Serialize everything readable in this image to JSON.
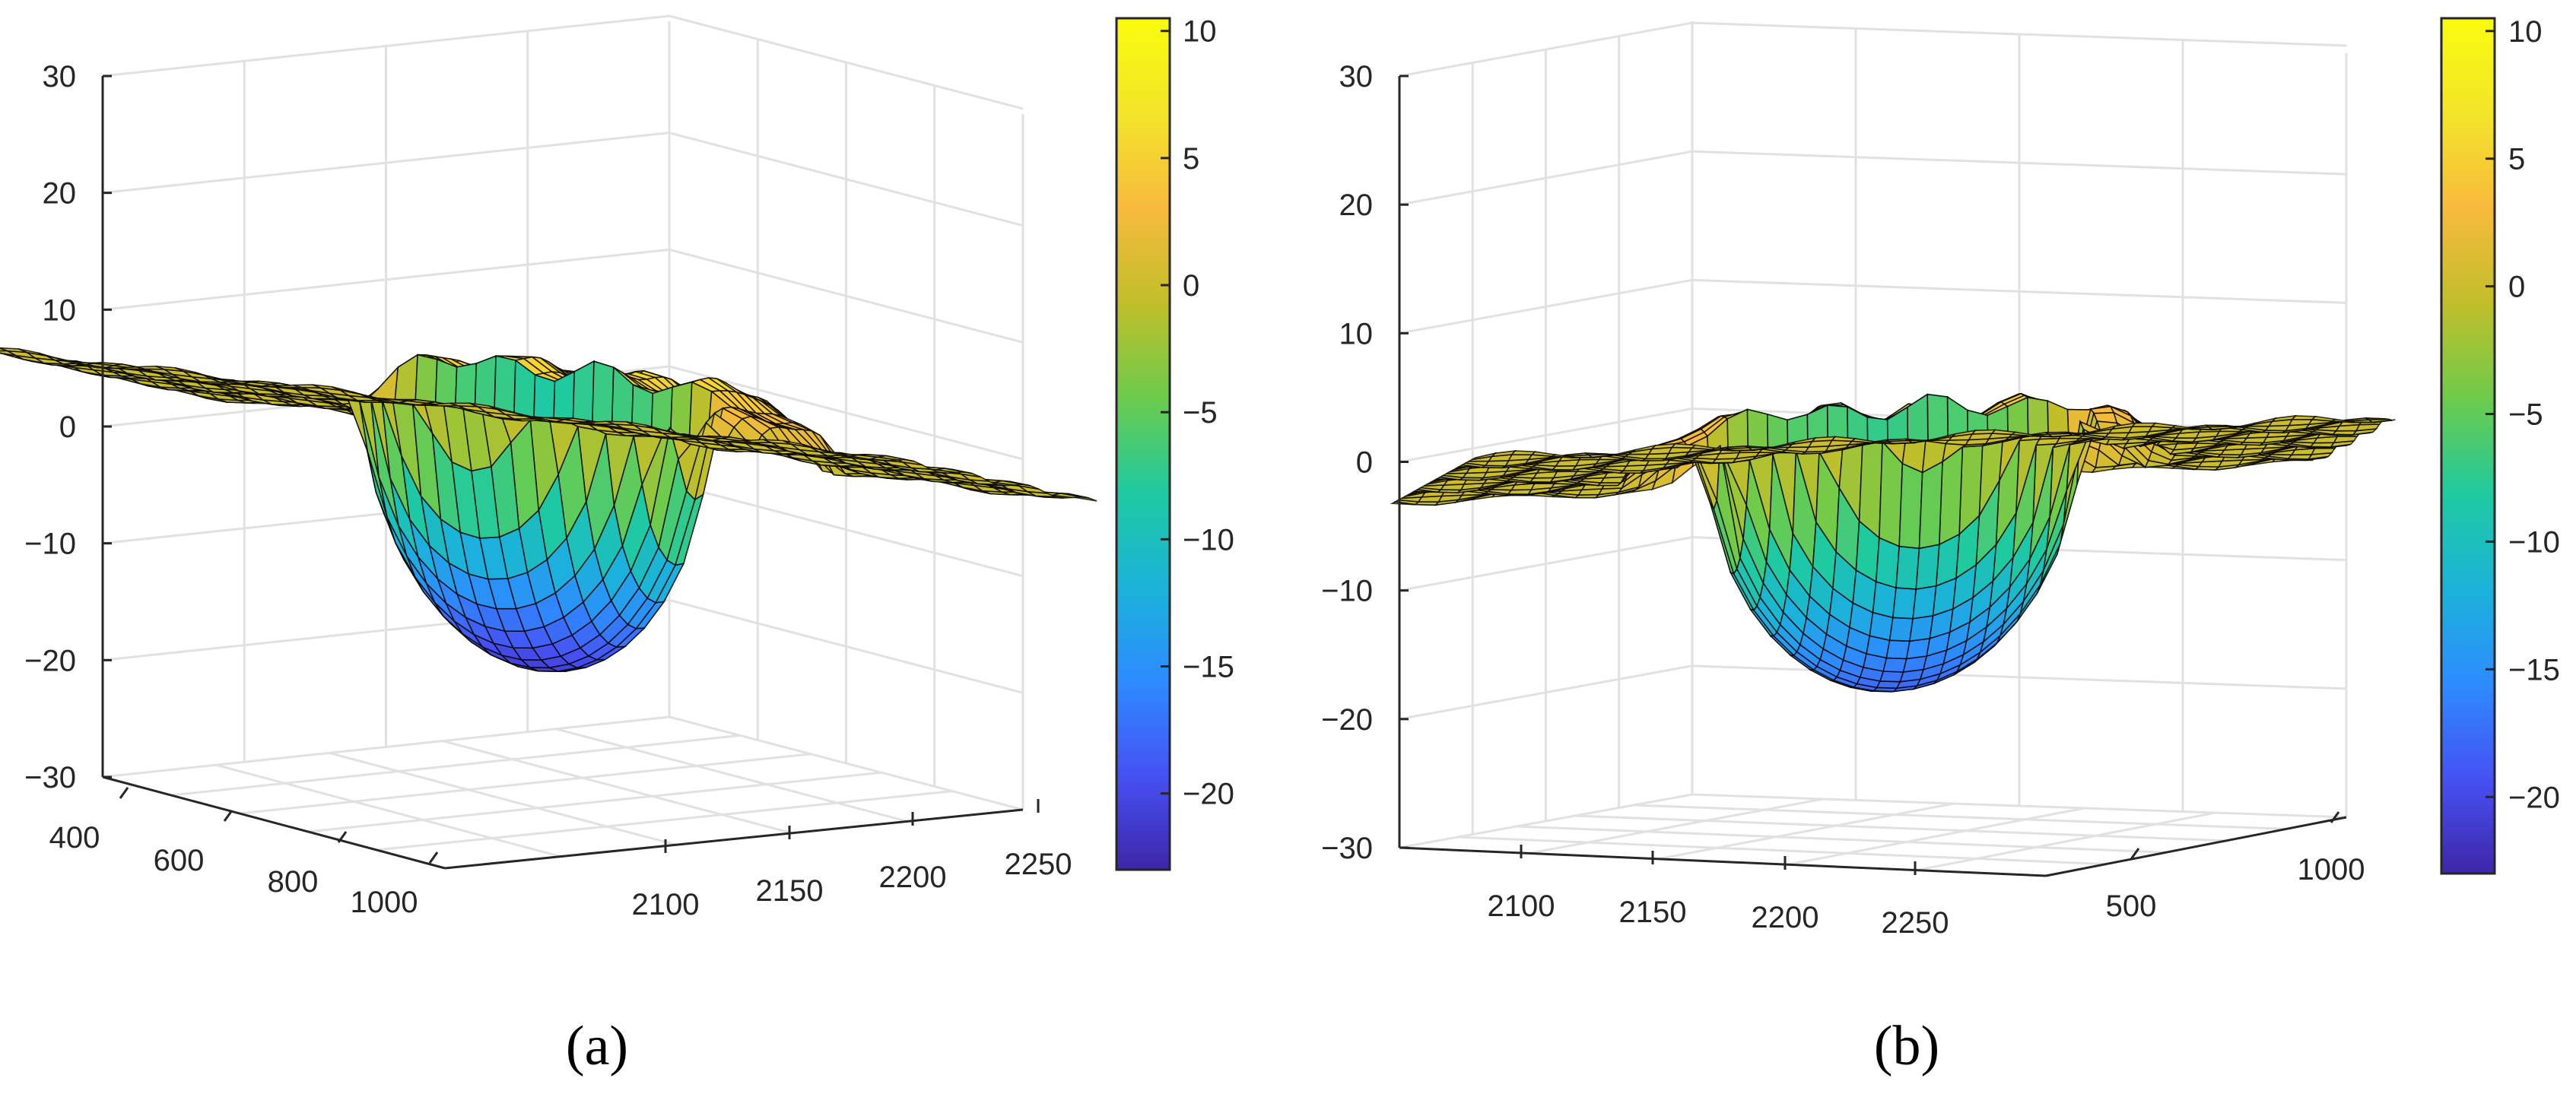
{
  "chart_data": [
    {
      "type": "surface",
      "panel_label": "(a)",
      "z_axis": {
        "ticks": [
          "30",
          "20",
          "10",
          "0",
          "−10",
          "−20",
          "−30"
        ],
        "lim": [
          -30,
          30
        ]
      },
      "x_axis": {
        "ticks": [
          "2100",
          "2150",
          "2200",
          "2250"
        ]
      },
      "y_axis": {
        "ticks": [
          "400",
          "600",
          "800",
          "1000"
        ]
      },
      "surface": {
        "flat_level": 0,
        "plateau_max": 6,
        "pit_min": -21
      },
      "colorbar": {
        "ticks": [
          "10",
          "5",
          "0",
          "−5",
          "−10",
          "−15",
          "−20"
        ],
        "range": [
          -23,
          10.5
        ]
      },
      "grid": true,
      "colormap": [
        "#3e26a8",
        "#4651f4",
        "#2d8cff",
        "#1bb3d9",
        "#1fcaa0",
        "#6ecb4b",
        "#c2be2a",
        "#f8ba3d",
        "#f3e52a",
        "#f9fb0e"
      ]
    },
    {
      "type": "surface",
      "panel_label": "(b)",
      "z_axis": {
        "ticks": [
          "30",
          "20",
          "10",
          "0",
          "−10",
          "−20",
          "−30"
        ],
        "lim": [
          -30,
          30
        ]
      },
      "x_axis": {
        "ticks": [
          "2100",
          "2150",
          "2200",
          "2250"
        ]
      },
      "y_axis": {
        "ticks": [
          "500",
          "1000"
        ]
      },
      "surface": {
        "flat_level": 0,
        "plateau_max": 5,
        "pit_min": -18
      },
      "colorbar": {
        "ticks": [
          "10",
          "5",
          "0",
          "−5",
          "−10",
          "−15",
          "−20"
        ],
        "range": [
          -23,
          10.5
        ]
      },
      "grid": true,
      "colormap": [
        "#3e26a8",
        "#4651f4",
        "#2d8cff",
        "#1bb3d9",
        "#1fcaa0",
        "#6ecb4b",
        "#c2be2a",
        "#f8ba3d",
        "#f3e52a",
        "#f9fb0e"
      ]
    }
  ]
}
